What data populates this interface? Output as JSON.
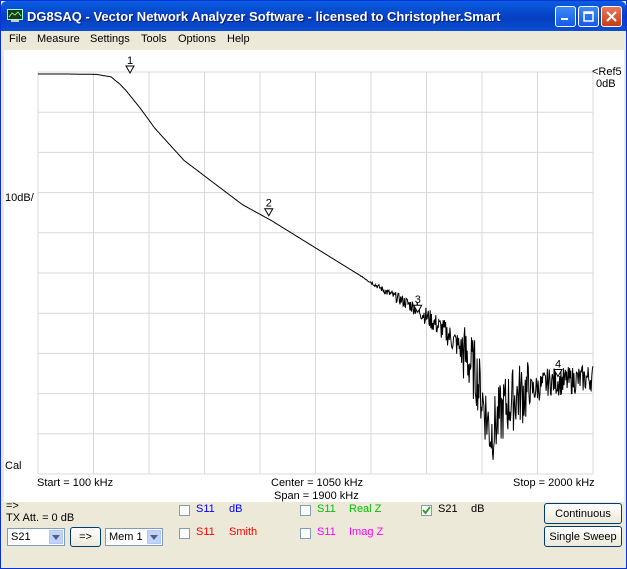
{
  "window": {
    "title": "DG8SAQ  -  Vector Network Analyzer Software  -  licensed to Christopher.Smart"
  },
  "menu": [
    "File",
    "Measure",
    "Settings",
    "Tools",
    "Options",
    "Help"
  ],
  "plot": {
    "ref_label": "<Ref5",
    "ref_value": "0dB",
    "scale_label": "10dB/",
    "cal_label": "Cal",
    "start_label": "Start = 100 kHz",
    "center_label": "Center = 1050 kHz",
    "span_label": "Span = 1900 kHz",
    "stop_label": "Stop = 2000 kHz",
    "markers": [
      "1",
      "2",
      "3",
      "4"
    ],
    "trace_color": "#000000",
    "grid_color": "#d8d8d8"
  },
  "chart_data": {
    "type": "line",
    "xlabel": "",
    "ylabel": "",
    "xlim": [
      100,
      2000
    ],
    "ylim": [
      -100,
      0
    ],
    "series": [
      {
        "x": [
          100,
          200,
          300,
          350,
          380,
          400,
          450,
          500,
          600,
          700,
          800,
          900,
          1000,
          1100,
          1200,
          1300,
          1400,
          1500,
          1550,
          1600,
          1650,
          1700,
          1750,
          1800,
          1850,
          1900,
          2000
        ],
        "y": [
          -0.5,
          -0.5,
          -0.6,
          -1.2,
          -3,
          -4.5,
          -9,
          -14,
          -22,
          -27.5,
          -33,
          -37,
          -41.5,
          -46,
          -50.5,
          -55,
          -59,
          -65,
          -69,
          -75,
          -90,
          -83,
          -80,
          -79,
          -77,
          -77,
          -76
        ]
      }
    ],
    "markers": [
      {
        "label": "1",
        "x": 415,
        "y": -0.5
      },
      {
        "label": "2",
        "x": 890,
        "y": -36
      },
      {
        "label": "3",
        "x": 1400,
        "y": -60
      },
      {
        "label": "4",
        "x": 1880,
        "y": -76
      }
    ]
  },
  "controls": {
    "arrow_label": "=>",
    "tx_att": "TX Att. = 0 dB",
    "trace_select": "S21",
    "copy_button": "=>",
    "mem_select": "Mem 1",
    "rows": [
      [
        {
          "param": "S11",
          "type": "dB",
          "param_color": "#0000ff",
          "type_color": "#0000ff",
          "checked": false
        },
        {
          "param": "S11",
          "type": "Real Z",
          "param_color": "#00c000",
          "type_color": "#00c000",
          "checked": false
        },
        {
          "param": "S21",
          "type": "dB",
          "param_color": "#000000",
          "type_color": "#000000",
          "checked": true
        }
      ],
      [
        {
          "param": "S11",
          "type": "Smith",
          "param_color": "#ff0000",
          "type_color": "#ff0000",
          "checked": false
        },
        {
          "param": "S11",
          "type": "Imag Z",
          "param_color": "#ff00ff",
          "type_color": "#ff00ff",
          "checked": false
        }
      ]
    ],
    "continuous_button": "Continuous",
    "single_sweep_button": "Single Sweep"
  }
}
